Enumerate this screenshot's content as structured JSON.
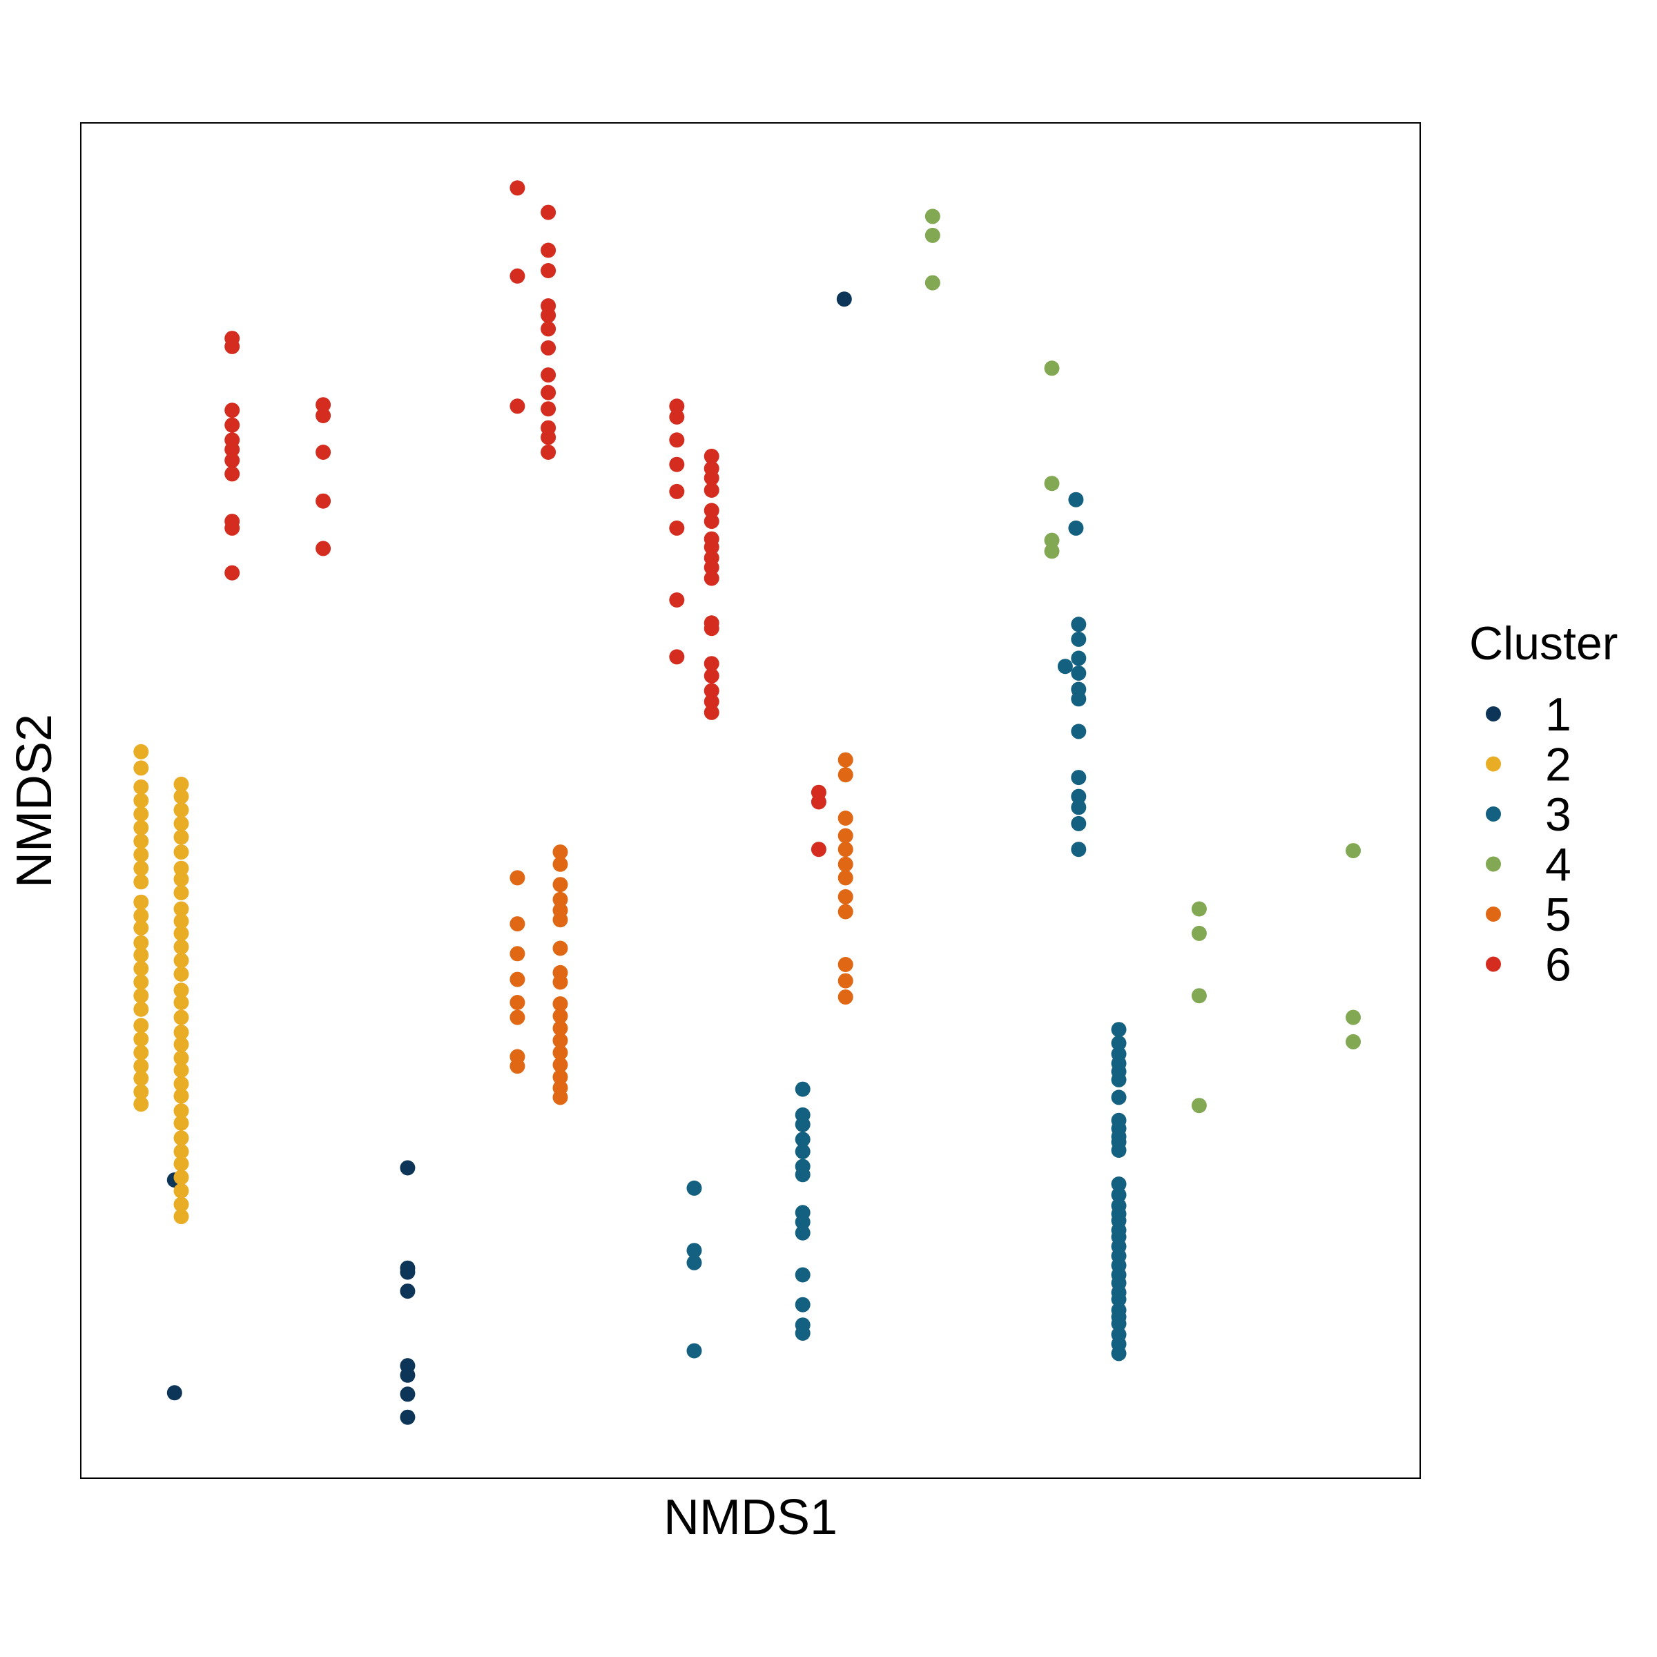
{
  "chart_data": {
    "type": "scatter",
    "xlabel": "NMDS1",
    "ylabel": "NMDS2",
    "xlim": [
      0,
      100
    ],
    "ylim": [
      0,
      100
    ],
    "x_ticks_shown": false,
    "y_ticks_shown": false,
    "grid": false,
    "legend": {
      "title": "Cluster",
      "position": "right"
    },
    "series": [
      {
        "name": "1",
        "color": "#0d3557",
        "points": [
          [
            57,
            87
          ],
          [
            7,
            22
          ],
          [
            7,
            6.3
          ],
          [
            24.4,
            22.9
          ],
          [
            24.4,
            15.5
          ],
          [
            24.4,
            15.2
          ],
          [
            24.4,
            13.8
          ],
          [
            24.4,
            8.3
          ],
          [
            24.4,
            7.6
          ],
          [
            24.4,
            6.2
          ],
          [
            24.4,
            4.5
          ]
        ]
      },
      {
        "name": "2",
        "color": "#e8ac25",
        "points": [
          [
            4.5,
            53.6
          ],
          [
            4.5,
            52.4
          ],
          [
            4.5,
            51
          ],
          [
            4.5,
            50
          ],
          [
            4.5,
            49
          ],
          [
            4.5,
            48
          ],
          [
            4.5,
            47
          ],
          [
            4.5,
            46
          ],
          [
            4.5,
            45
          ],
          [
            4.5,
            44
          ],
          [
            4.5,
            42.5
          ],
          [
            4.5,
            41.5
          ],
          [
            4.5,
            40.6
          ],
          [
            4.5,
            39.5
          ],
          [
            4.5,
            38.6
          ],
          [
            4.5,
            37.6
          ],
          [
            4.5,
            36.6
          ],
          [
            4.5,
            35.6
          ],
          [
            4.5,
            34.6
          ],
          [
            4.5,
            33.4
          ],
          [
            4.5,
            32.4
          ],
          [
            4.5,
            31.4
          ],
          [
            4.5,
            30.4
          ],
          [
            4.5,
            29.5
          ],
          [
            4.5,
            28.5
          ],
          [
            4.5,
            27.6
          ],
          [
            7.5,
            51.2
          ],
          [
            7.5,
            50.3
          ],
          [
            7.5,
            49.3
          ],
          [
            7.5,
            48.3
          ],
          [
            7.5,
            47.3
          ],
          [
            7.5,
            46.2
          ],
          [
            7.5,
            45
          ],
          [
            7.5,
            44.2
          ],
          [
            7.5,
            43.2
          ],
          [
            7.5,
            42
          ],
          [
            7.5,
            41.1
          ],
          [
            7.5,
            40.2
          ],
          [
            7.5,
            39.2
          ],
          [
            7.5,
            38.2
          ],
          [
            7.5,
            37.2
          ],
          [
            7.5,
            36
          ],
          [
            7.5,
            35.1
          ],
          [
            7.5,
            34
          ],
          [
            7.5,
            32.9
          ],
          [
            7.5,
            32
          ],
          [
            7.5,
            31
          ],
          [
            7.5,
            30.1
          ],
          [
            7.5,
            29.1
          ],
          [
            7.5,
            28.2
          ],
          [
            7.5,
            27.1
          ],
          [
            7.5,
            26.2
          ],
          [
            7.5,
            25.1
          ],
          [
            7.5,
            24.1
          ],
          [
            7.5,
            23.2
          ],
          [
            7.5,
            22.2
          ],
          [
            7.5,
            21.2
          ],
          [
            7.5,
            20.2
          ],
          [
            7.5,
            19.3
          ]
        ]
      },
      {
        "name": "3",
        "color": "#136080",
        "points": [
          [
            45.8,
            21.4
          ],
          [
            45.8,
            16.8
          ],
          [
            45.8,
            15.9
          ],
          [
            45.8,
            9.4
          ],
          [
            53.9,
            28.7
          ],
          [
            53.9,
            26.8
          ],
          [
            53.9,
            26.1
          ],
          [
            53.9,
            25
          ],
          [
            53.9,
            24.1
          ],
          [
            53.9,
            23
          ],
          [
            53.9,
            22.4
          ],
          [
            53.9,
            19.6
          ],
          [
            53.9,
            18.9
          ],
          [
            53.9,
            18.1
          ],
          [
            53.9,
            15
          ],
          [
            53.9,
            12.8
          ],
          [
            53.9,
            11.3
          ],
          [
            53.9,
            10.7
          ],
          [
            74.3,
            72.2
          ],
          [
            74.3,
            70.1
          ],
          [
            74.5,
            63
          ],
          [
            74.5,
            61.9
          ],
          [
            74.5,
            60.5
          ],
          [
            74.5,
            59.4
          ],
          [
            74.5,
            58.2
          ],
          [
            74.5,
            57.5
          ],
          [
            74.5,
            55.1
          ],
          [
            74.5,
            51.7
          ],
          [
            74.5,
            50.3
          ],
          [
            74.5,
            49.5
          ],
          [
            74.5,
            48.3
          ],
          [
            74.5,
            46.4
          ],
          [
            73.5,
            59.9
          ],
          [
            77.5,
            33.1
          ],
          [
            77.5,
            32.1
          ],
          [
            77.5,
            31.3
          ],
          [
            77.5,
            30.6
          ],
          [
            77.5,
            30
          ],
          [
            77.5,
            29.4
          ],
          [
            77.5,
            28.1
          ],
          [
            77.5,
            26.4
          ],
          [
            77.5,
            25.8
          ],
          [
            77.5,
            25.2
          ],
          [
            77.5,
            24.8
          ],
          [
            77.5,
            24.2
          ],
          [
            77.5,
            21.7
          ],
          [
            77.5,
            20.9
          ],
          [
            77.5,
            20.1
          ],
          [
            77.5,
            19.5
          ],
          [
            77.5,
            19
          ],
          [
            77.5,
            18.3
          ],
          [
            77.5,
            17.8
          ],
          [
            77.5,
            17.1
          ],
          [
            77.5,
            16.4
          ],
          [
            77.5,
            15.7
          ],
          [
            77.5,
            15
          ],
          [
            77.5,
            14.4
          ],
          [
            77.5,
            13.7
          ],
          [
            77.5,
            13.2
          ],
          [
            77.5,
            12.4
          ],
          [
            77.5,
            11.9
          ],
          [
            77.5,
            11.4
          ],
          [
            77.5,
            10.6
          ],
          [
            77.5,
            9.9
          ],
          [
            77.5,
            9.2
          ]
        ]
      },
      {
        "name": "4",
        "color": "#82a853",
        "points": [
          [
            63.6,
            93.1
          ],
          [
            63.6,
            91.7
          ],
          [
            63.6,
            88.2
          ],
          [
            72.5,
            81.9
          ],
          [
            72.5,
            73.4
          ],
          [
            72.5,
            69.2
          ],
          [
            72.5,
            68.4
          ],
          [
            83.5,
            42
          ],
          [
            83.5,
            40.2
          ],
          [
            83.5,
            35.6
          ],
          [
            83.5,
            27.5
          ],
          [
            95,
            46.3
          ],
          [
            95,
            34
          ],
          [
            95,
            32.2
          ]
        ]
      },
      {
        "name": "5",
        "color": "#e06814",
        "points": [
          [
            32.6,
            44.3
          ],
          [
            32.6,
            40.9
          ],
          [
            32.6,
            38.7
          ],
          [
            32.6,
            36.8
          ],
          [
            32.6,
            35.1
          ],
          [
            32.6,
            34
          ],
          [
            32.6,
            31.1
          ],
          [
            32.6,
            30.4
          ],
          [
            35.8,
            46.2
          ],
          [
            35.8,
            45.3
          ],
          [
            35.8,
            43.8
          ],
          [
            35.8,
            42.7
          ],
          [
            35.8,
            41.9
          ],
          [
            35.8,
            41.2
          ],
          [
            35.8,
            39.1
          ],
          [
            35.8,
            37.3
          ],
          [
            35.8,
            36.6
          ],
          [
            35.8,
            35
          ],
          [
            35.8,
            34.1
          ],
          [
            35.8,
            33.2
          ],
          [
            35.8,
            32.3
          ],
          [
            35.8,
            31.4
          ],
          [
            35.8,
            30.5
          ],
          [
            35.8,
            29.6
          ],
          [
            35.8,
            28.8
          ],
          [
            35.8,
            28.1
          ],
          [
            57.1,
            53
          ],
          [
            57.1,
            51.9
          ],
          [
            57.1,
            48.7
          ],
          [
            57.1,
            47.4
          ],
          [
            57.1,
            46.4
          ],
          [
            57.1,
            45.3
          ],
          [
            57.1,
            44.3
          ],
          [
            57.1,
            42.9
          ],
          [
            57.1,
            41.8
          ],
          [
            57.1,
            37.9
          ],
          [
            57.1,
            36.7
          ],
          [
            57.1,
            35.5
          ]
        ]
      },
      {
        "name": "6",
        "color": "#d42d20",
        "points": [
          [
            32.6,
            95.2
          ],
          [
            32.6,
            88.7
          ],
          [
            32.6,
            79.1
          ],
          [
            34.9,
            93.4
          ],
          [
            34.9,
            90.6
          ],
          [
            34.9,
            89.1
          ],
          [
            34.9,
            86.5
          ],
          [
            34.9,
            85.8
          ],
          [
            34.9,
            84.8
          ],
          [
            34.9,
            83.4
          ],
          [
            34.9,
            81.4
          ],
          [
            34.9,
            80.1
          ],
          [
            34.9,
            78.9
          ],
          [
            34.9,
            77.5
          ],
          [
            34.9,
            76.8
          ],
          [
            34.9,
            75.7
          ],
          [
            11.3,
            84.1
          ],
          [
            11.3,
            83.5
          ],
          [
            11.3,
            78.8
          ],
          [
            11.3,
            77.7
          ],
          [
            11.3,
            76.6
          ],
          [
            11.3,
            75.9
          ],
          [
            11.3,
            75.1
          ],
          [
            11.3,
            74.1
          ],
          [
            11.3,
            70.6
          ],
          [
            11.3,
            70.1
          ],
          [
            11.3,
            66.8
          ],
          [
            18.1,
            79.2
          ],
          [
            18.1,
            78.4
          ],
          [
            18.1,
            75.7
          ],
          [
            18.1,
            72.1
          ],
          [
            18.1,
            68.6
          ],
          [
            44.5,
            79.1
          ],
          [
            44.5,
            78.3
          ],
          [
            44.5,
            76.6
          ],
          [
            44.5,
            74.8
          ],
          [
            44.5,
            72.8
          ],
          [
            44.5,
            70.1
          ],
          [
            44.5,
            64.8
          ],
          [
            44.5,
            60.6
          ],
          [
            47.1,
            75.4
          ],
          [
            47.1,
            74.5
          ],
          [
            47.1,
            73.8
          ],
          [
            47.1,
            72.9
          ],
          [
            47.1,
            71.4
          ],
          [
            47.1,
            70.6
          ],
          [
            47.1,
            69.3
          ],
          [
            47.1,
            68.7
          ],
          [
            47.1,
            67.9
          ],
          [
            47.1,
            67.2
          ],
          [
            47.1,
            66.4
          ],
          [
            47.1,
            63.1
          ],
          [
            47.1,
            62.7
          ],
          [
            47.1,
            60.1
          ],
          [
            47.1,
            59.2
          ],
          [
            47.1,
            58.1
          ],
          [
            47.1,
            57.3
          ],
          [
            47.1,
            56.5
          ],
          [
            55.1,
            50.6
          ],
          [
            55.1,
            49.9
          ],
          [
            55.1,
            46.4
          ]
        ]
      }
    ]
  }
}
